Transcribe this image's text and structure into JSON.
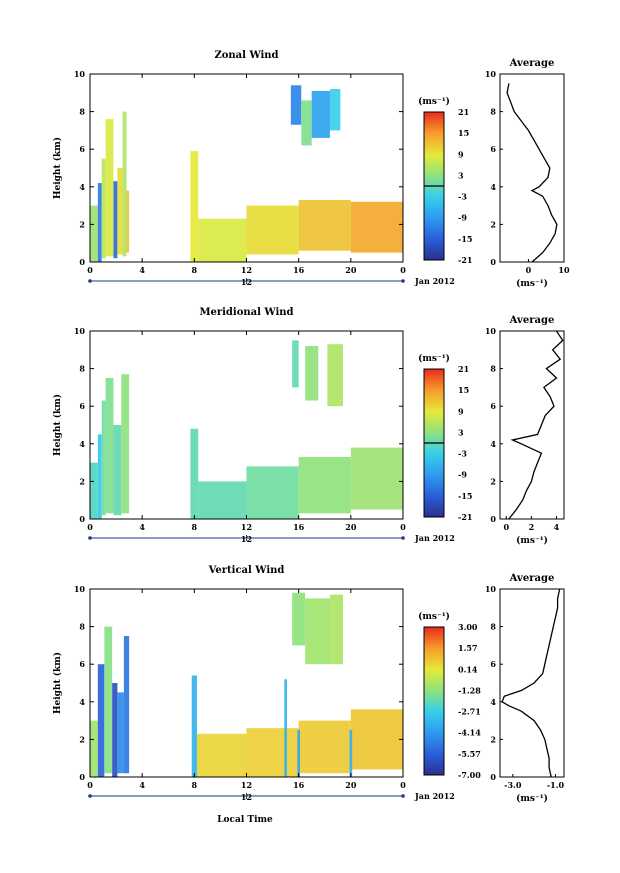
{
  "panels": [
    {
      "title": "Zonal Wind",
      "ylabel": "Height (km)",
      "yticks": [
        "0",
        "2",
        "4",
        "6",
        "8",
        "10"
      ],
      "xticks": [
        "0",
        "4",
        "8",
        "12",
        "16",
        "20",
        "0"
      ],
      "day_label": "12",
      "date_label": "Jan 2012",
      "unit_label": "(ms⁻¹)",
      "colorbar_ticks": [
        "21",
        "15",
        "9",
        "3",
        "-3",
        "-9",
        "-15",
        "-21"
      ],
      "avg_title": "Average",
      "avg_xticks": [
        "0",
        "10"
      ],
      "avg_yticks": [
        "0",
        "2",
        "4",
        "6",
        "8",
        "10"
      ],
      "avg_unit": "(ms⁻¹)"
    },
    {
      "title": "Meridional Wind",
      "ylabel": "Height (km)",
      "yticks": [
        "0",
        "2",
        "4",
        "6",
        "8",
        "10"
      ],
      "xticks": [
        "0",
        "4",
        "8",
        "12",
        "16",
        "20",
        "0"
      ],
      "day_label": "12",
      "date_label": "Jan 2012",
      "unit_label": "(ms⁻¹)",
      "colorbar_ticks": [
        "21",
        "15",
        "9",
        "3",
        "-3",
        "-9",
        "-15",
        "-21"
      ],
      "avg_title": "Average",
      "avg_xticks": [
        "0",
        "2",
        "4"
      ],
      "avg_yticks": [
        "0",
        "2",
        "4",
        "6",
        "8",
        "10"
      ],
      "avg_unit": "(ms⁻¹)"
    },
    {
      "title": "Vertical Wind",
      "ylabel": "Height (km)",
      "yticks": [
        "0",
        "2",
        "4",
        "6",
        "8",
        "10"
      ],
      "xticks": [
        "0",
        "4",
        "8",
        "12",
        "16",
        "20",
        "0"
      ],
      "day_label": "12",
      "date_label": "Jan 2012",
      "unit_label": "(ms⁻¹)",
      "colorbar_ticks": [
        "3.00",
        "1.57",
        "0.14",
        "-1.28",
        "-2.71",
        "-4.14",
        "-5.57",
        "-7.00"
      ],
      "avg_title": "Average",
      "avg_xticks": [
        "-3.0",
        "-1.0"
      ],
      "avg_yticks": [
        "0",
        "2",
        "4",
        "6",
        "8",
        "10"
      ],
      "avg_unit": "(ms⁻¹)"
    }
  ],
  "xlabel": "Local Time",
  "chart_data": [
    {
      "type": "heatmap",
      "title": "Zonal Wind",
      "xlabel": "",
      "ylabel": "Height (km)",
      "x_unit": "hour (local time, 12 Jan 2012)",
      "xlim": [
        0,
        24
      ],
      "ylim": [
        0,
        10
      ],
      "colorbar": {
        "label": "(ms⁻¹)",
        "range": [
          -21,
          21
        ],
        "ticks": [
          -21,
          -15,
          -9,
          -3,
          3,
          9,
          15,
          21
        ]
      },
      "grid": false,
      "cells": [
        {
          "x": [
            0.0,
            0.6
          ],
          "y": [
            0.0,
            3.0
          ],
          "v": 4
        },
        {
          "x": [
            0.6,
            0.9
          ],
          "y": [
            0.0,
            4.2
          ],
          "v": -12
        },
        {
          "x": [
            0.9,
            1.2
          ],
          "y": [
            0.2,
            5.5
          ],
          "v": 6
        },
        {
          "x": [
            1.2,
            1.8
          ],
          "y": [
            0.3,
            7.6
          ],
          "v": 8
        },
        {
          "x": [
            1.8,
            2.1
          ],
          "y": [
            0.2,
            4.3
          ],
          "v": -14
        },
        {
          "x": [
            2.1,
            2.5
          ],
          "y": [
            0.4,
            5.0
          ],
          "v": 10
        },
        {
          "x": [
            2.5,
            2.8
          ],
          "y": [
            0.3,
            8.0
          ],
          "v": 5
        },
        {
          "x": [
            2.8,
            3.0
          ],
          "y": [
            0.5,
            3.8
          ],
          "v": 12
        },
        {
          "x": [
            7.7,
            8.3
          ],
          "y": [
            0.0,
            5.9
          ],
          "v": 9
        },
        {
          "x": [
            8.3,
            12.0
          ],
          "y": [
            0.0,
            2.3
          ],
          "v": 8
        },
        {
          "x": [
            12.0,
            16.0
          ],
          "y": [
            0.4,
            3.0
          ],
          "v": 10
        },
        {
          "x": [
            16.0,
            20.0
          ],
          "y": [
            0.6,
            3.3
          ],
          "v": 12
        },
        {
          "x": [
            20.0,
            24.0
          ],
          "y": [
            0.5,
            3.2
          ],
          "v": 14
        },
        {
          "x": [
            15.4,
            16.2
          ],
          "y": [
            7.3,
            9.4
          ],
          "v": -11
        },
        {
          "x": [
            16.2,
            17.0
          ],
          "y": [
            6.2,
            8.6
          ],
          "v": 2
        },
        {
          "x": [
            17.0,
            18.4
          ],
          "y": [
            6.6,
            9.1
          ],
          "v": -8
        },
        {
          "x": [
            18.4,
            19.2
          ],
          "y": [
            7.0,
            9.2
          ],
          "v": -3
        }
      ],
      "average_profile": {
        "title": "Average",
        "xlabel": "(ms⁻¹)",
        "xlim": [
          -8,
          10
        ],
        "height": [
          0.0,
          0.5,
          1.0,
          1.5,
          2.0,
          2.5,
          3.0,
          3.5,
          3.8,
          4.0,
          4.5,
          5.0,
          5.5,
          6.0,
          6.5,
          7.0,
          7.5,
          8.0,
          8.5,
          9.0,
          9.5
        ],
        "value": [
          1.0,
          4.0,
          6.0,
          7.5,
          8.0,
          6.5,
          5.5,
          4.0,
          1.0,
          3.0,
          5.5,
          6.0,
          4.5,
          3.0,
          1.5,
          0.0,
          -2.0,
          -4.0,
          -5.0,
          -6.0,
          -5.5
        ]
      }
    },
    {
      "type": "heatmap",
      "title": "Meridional Wind",
      "xlabel": "",
      "ylabel": "Height (km)",
      "x_unit": "hour (local time, 12 Jan 2012)",
      "xlim": [
        0,
        24
      ],
      "ylim": [
        0,
        10
      ],
      "colorbar": {
        "label": "(ms⁻¹)",
        "range": [
          -21,
          21
        ],
        "ticks": [
          -21,
          -15,
          -9,
          -3,
          3,
          9,
          15,
          21
        ]
      },
      "grid": false,
      "cells": [
        {
          "x": [
            0.0,
            0.6
          ],
          "y": [
            0.0,
            3.0
          ],
          "v": -1
        },
        {
          "x": [
            0.6,
            0.9
          ],
          "y": [
            0.0,
            4.5
          ],
          "v": -4
        },
        {
          "x": [
            0.9,
            1.2
          ],
          "y": [
            0.2,
            6.3
          ],
          "v": 1
        },
        {
          "x": [
            1.2,
            1.8
          ],
          "y": [
            0.3,
            7.5
          ],
          "v": 2
        },
        {
          "x": [
            1.8,
            2.4
          ],
          "y": [
            0.2,
            5.0
          ],
          "v": 0
        },
        {
          "x": [
            2.4,
            3.0
          ],
          "y": [
            0.3,
            7.7
          ],
          "v": 3
        },
        {
          "x": [
            7.7,
            8.3
          ],
          "y": [
            0.0,
            4.8
          ],
          "v": 0
        },
        {
          "x": [
            8.3,
            12.0
          ],
          "y": [
            0.0,
            2.0
          ],
          "v": 0
        },
        {
          "x": [
            12.0,
            16.0
          ],
          "y": [
            0.0,
            2.8
          ],
          "v": 1
        },
        {
          "x": [
            16.0,
            20.0
          ],
          "y": [
            0.3,
            3.3
          ],
          "v": 3
        },
        {
          "x": [
            20.0,
            24.0
          ],
          "y": [
            0.5,
            3.8
          ],
          "v": 4
        },
        {
          "x": [
            15.5,
            16.0
          ],
          "y": [
            7.0,
            9.5
          ],
          "v": 0
        },
        {
          "x": [
            16.5,
            17.5
          ],
          "y": [
            6.3,
            9.2
          ],
          "v": 3
        },
        {
          "x": [
            18.2,
            19.4
          ],
          "y": [
            6.0,
            9.3
          ],
          "v": 5
        }
      ],
      "average_profile": {
        "title": "Average",
        "xlabel": "(ms⁻¹)",
        "xlim": [
          -0.5,
          4.6
        ],
        "height": [
          0.0,
          0.5,
          1.0,
          1.5,
          2.0,
          2.5,
          3.0,
          3.5,
          4.0,
          4.2,
          4.5,
          5.0,
          5.5,
          6.0,
          6.5,
          7.0,
          7.5,
          8.0,
          8.5,
          9.0,
          9.5,
          10.0
        ],
        "value": [
          0.2,
          0.8,
          1.3,
          1.6,
          2.0,
          2.2,
          2.5,
          2.8,
          1.2,
          0.5,
          2.5,
          2.8,
          3.1,
          3.8,
          3.5,
          3.0,
          4.0,
          3.2,
          4.3,
          3.7,
          4.5,
          4.0
        ]
      }
    },
    {
      "type": "heatmap",
      "title": "Vertical Wind",
      "xlabel": "Local Time",
      "ylabel": "Height (km)",
      "x_unit": "hour (local time, 12 Jan 2012)",
      "xlim": [
        0,
        24
      ],
      "ylim": [
        0,
        10
      ],
      "colorbar": {
        "label": "(ms⁻¹)",
        "range": [
          -7.0,
          3.0
        ],
        "ticks": [
          -7.0,
          -5.57,
          -4.14,
          -2.71,
          -1.28,
          0.14,
          1.57,
          3.0
        ]
      },
      "grid": false,
      "cells": [
        {
          "x": [
            0.0,
            0.6
          ],
          "y": [
            0.0,
            3.0
          ],
          "v": -1.0
        },
        {
          "x": [
            0.6,
            1.1
          ],
          "y": [
            0.0,
            6.0
          ],
          "v": -5.5
        },
        {
          "x": [
            1.1,
            1.7
          ],
          "y": [
            0.2,
            8.0
          ],
          "v": -1.4
        },
        {
          "x": [
            1.7,
            2.1
          ],
          "y": [
            0.0,
            5.0
          ],
          "v": -6.0
        },
        {
          "x": [
            2.1,
            2.6
          ],
          "y": [
            0.2,
            4.5
          ],
          "v": -4.5
        },
        {
          "x": [
            2.6,
            3.0
          ],
          "y": [
            0.2,
            7.5
          ],
          "v": -5.0
        },
        {
          "x": [
            7.8,
            8.2
          ],
          "y": [
            0.0,
            5.4
          ],
          "v": -3.5
        },
        {
          "x": [
            8.2,
            12.0
          ],
          "y": [
            0.0,
            2.3
          ],
          "v": 0.5
        },
        {
          "x": [
            12.0,
            16.0
          ],
          "y": [
            0.0,
            2.6
          ],
          "v": 0.6
        },
        {
          "x": [
            16.0,
            20.0
          ],
          "y": [
            0.2,
            3.0
          ],
          "v": 0.7
        },
        {
          "x": [
            20.0,
            24.0
          ],
          "y": [
            0.4,
            3.6
          ],
          "v": 0.8
        },
        {
          "x": [
            14.9,
            15.1
          ],
          "y": [
            0.0,
            5.2
          ],
          "v": -3.5
        },
        {
          "x": [
            15.9,
            16.1
          ],
          "y": [
            0.0,
            2.5
          ],
          "v": -3.8
        },
        {
          "x": [
            19.9,
            20.1
          ],
          "y": [
            0.0,
            2.5
          ],
          "v": -3.5
        },
        {
          "x": [
            15.5,
            16.5
          ],
          "y": [
            7.0,
            9.8
          ],
          "v": -1.3
        },
        {
          "x": [
            16.5,
            18.4
          ],
          "y": [
            6.0,
            9.5
          ],
          "v": -1.0
        },
        {
          "x": [
            18.4,
            19.4
          ],
          "y": [
            6.0,
            9.7
          ],
          "v": -0.8
        }
      ],
      "average_profile": {
        "title": "Average",
        "xlabel": "(ms⁻¹)",
        "xlim": [
          -3.6,
          -0.6
        ],
        "height": [
          0.0,
          0.5,
          1.0,
          1.5,
          2.0,
          2.5,
          3.0,
          3.5,
          3.8,
          4.0,
          4.3,
          4.6,
          5.0,
          5.5,
          6.0,
          6.5,
          7.0,
          7.5,
          8.0,
          8.5,
          9.0,
          9.5,
          10.0
        ],
        "value": [
          -1.2,
          -1.3,
          -1.3,
          -1.4,
          -1.5,
          -1.7,
          -2.0,
          -2.6,
          -3.2,
          -3.5,
          -3.4,
          -2.6,
          -2.0,
          -1.6,
          -1.5,
          -1.4,
          -1.3,
          -1.2,
          -1.1,
          -1.0,
          -0.9,
          -0.9,
          -0.8
        ]
      }
    }
  ]
}
